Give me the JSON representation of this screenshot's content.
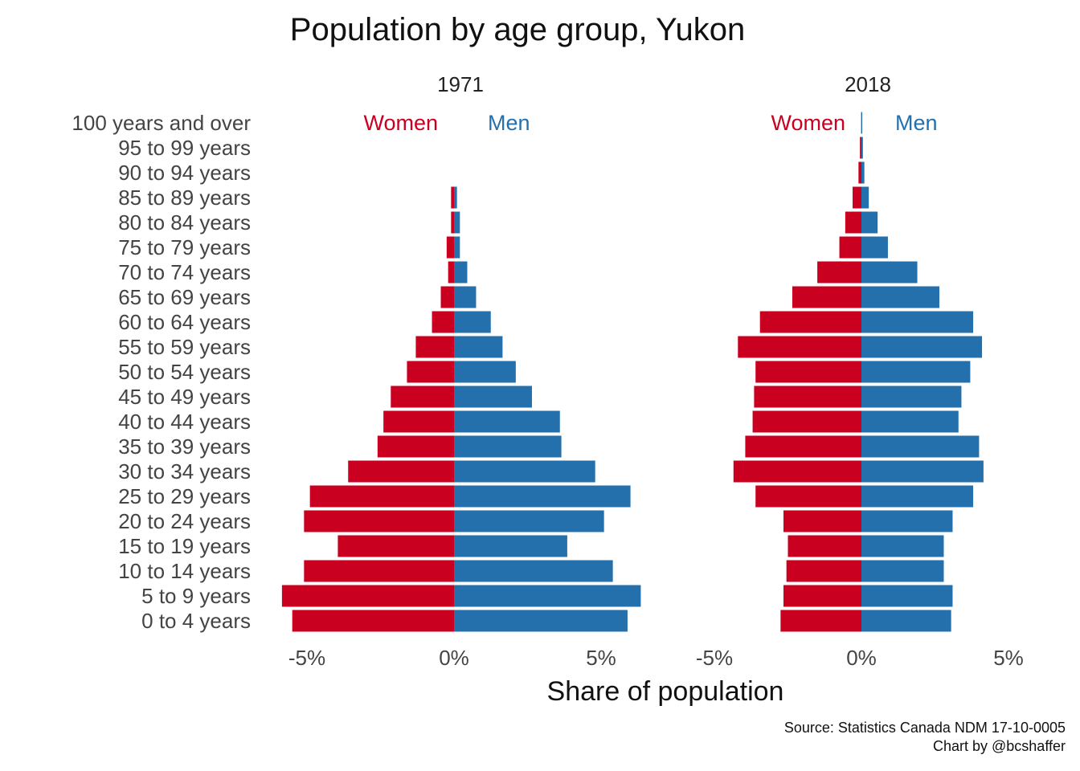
{
  "chart_data": {
    "type": "bar",
    "subtype": "population-pyramid",
    "title": "Population by age group, Yukon",
    "xlabel": "Share of population",
    "caption": [
      "Source: Statistics Canada NDM 17-10-0005",
      "Chart by @bcshaffer"
    ],
    "legend": {
      "women": "Women",
      "men": "Men"
    },
    "colors": {
      "women": "#ca0020",
      "men": "#2470ad"
    },
    "xlim": [
      -6.5,
      6
    ],
    "xticks": [
      {
        "value": -5,
        "label": "-5%"
      },
      {
        "value": 0,
        "label": "0%"
      },
      {
        "value": 5,
        "label": "5%"
      }
    ],
    "categories": [
      "100 years and over",
      "95 to 99 years",
      "90 to 94 years",
      "85 to 89 years",
      "80 to 84 years",
      "75 to 79 years",
      "70 to 74 years",
      "65 to 69 years",
      "60 to 64 years",
      "55 to 59 years",
      "50 to 54 years",
      "45 to 49 years",
      "40 to 44 years",
      "35 to 39 years",
      "30 to 34 years",
      "25 to 29 years",
      "20 to 24 years",
      "15 to 19 years",
      "10 to 14 years",
      "5 to 9 years",
      "0 to 4 years"
    ],
    "panels": [
      {
        "title": "1971",
        "series": [
          {
            "name": "Women",
            "values": [
              0,
              0,
              0,
              -0.1,
              -0.1,
              -0.25,
              -0.2,
              -0.45,
              -0.75,
              -1.3,
              -1.6,
              -2.15,
              -2.4,
              -2.6,
              -3.6,
              -4.9,
              -5.1,
              -3.95,
              -5.1,
              -5.85,
              -5.5
            ]
          },
          {
            "name": "Men",
            "values": [
              0,
              0,
              0,
              0.1,
              0.2,
              0.2,
              0.45,
              0.75,
              1.25,
              1.65,
              2.1,
              2.65,
              3.6,
              3.65,
              4.8,
              6.0,
              5.1,
              3.85,
              5.4,
              6.35,
              5.9
            ]
          }
        ]
      },
      {
        "title": "2018",
        "series": [
          {
            "name": "Women",
            "values": [
              -0.01,
              -0.05,
              -0.1,
              -0.3,
              -0.55,
              -0.75,
              -1.5,
              -2.35,
              -3.45,
              -4.2,
              -3.6,
              -3.65,
              -3.7,
              -3.95,
              -4.35,
              -3.6,
              -2.65,
              -2.5,
              -2.55,
              -2.65,
              -2.75
            ]
          },
          {
            "name": "Men",
            "values": [
              0.01,
              0.05,
              0.1,
              0.25,
              0.55,
              0.9,
              1.9,
              2.65,
              3.8,
              4.1,
              3.7,
              3.4,
              3.3,
              4.0,
              4.15,
              3.8,
              3.1,
              2.8,
              2.8,
              3.1,
              3.05
            ]
          }
        ]
      }
    ]
  }
}
